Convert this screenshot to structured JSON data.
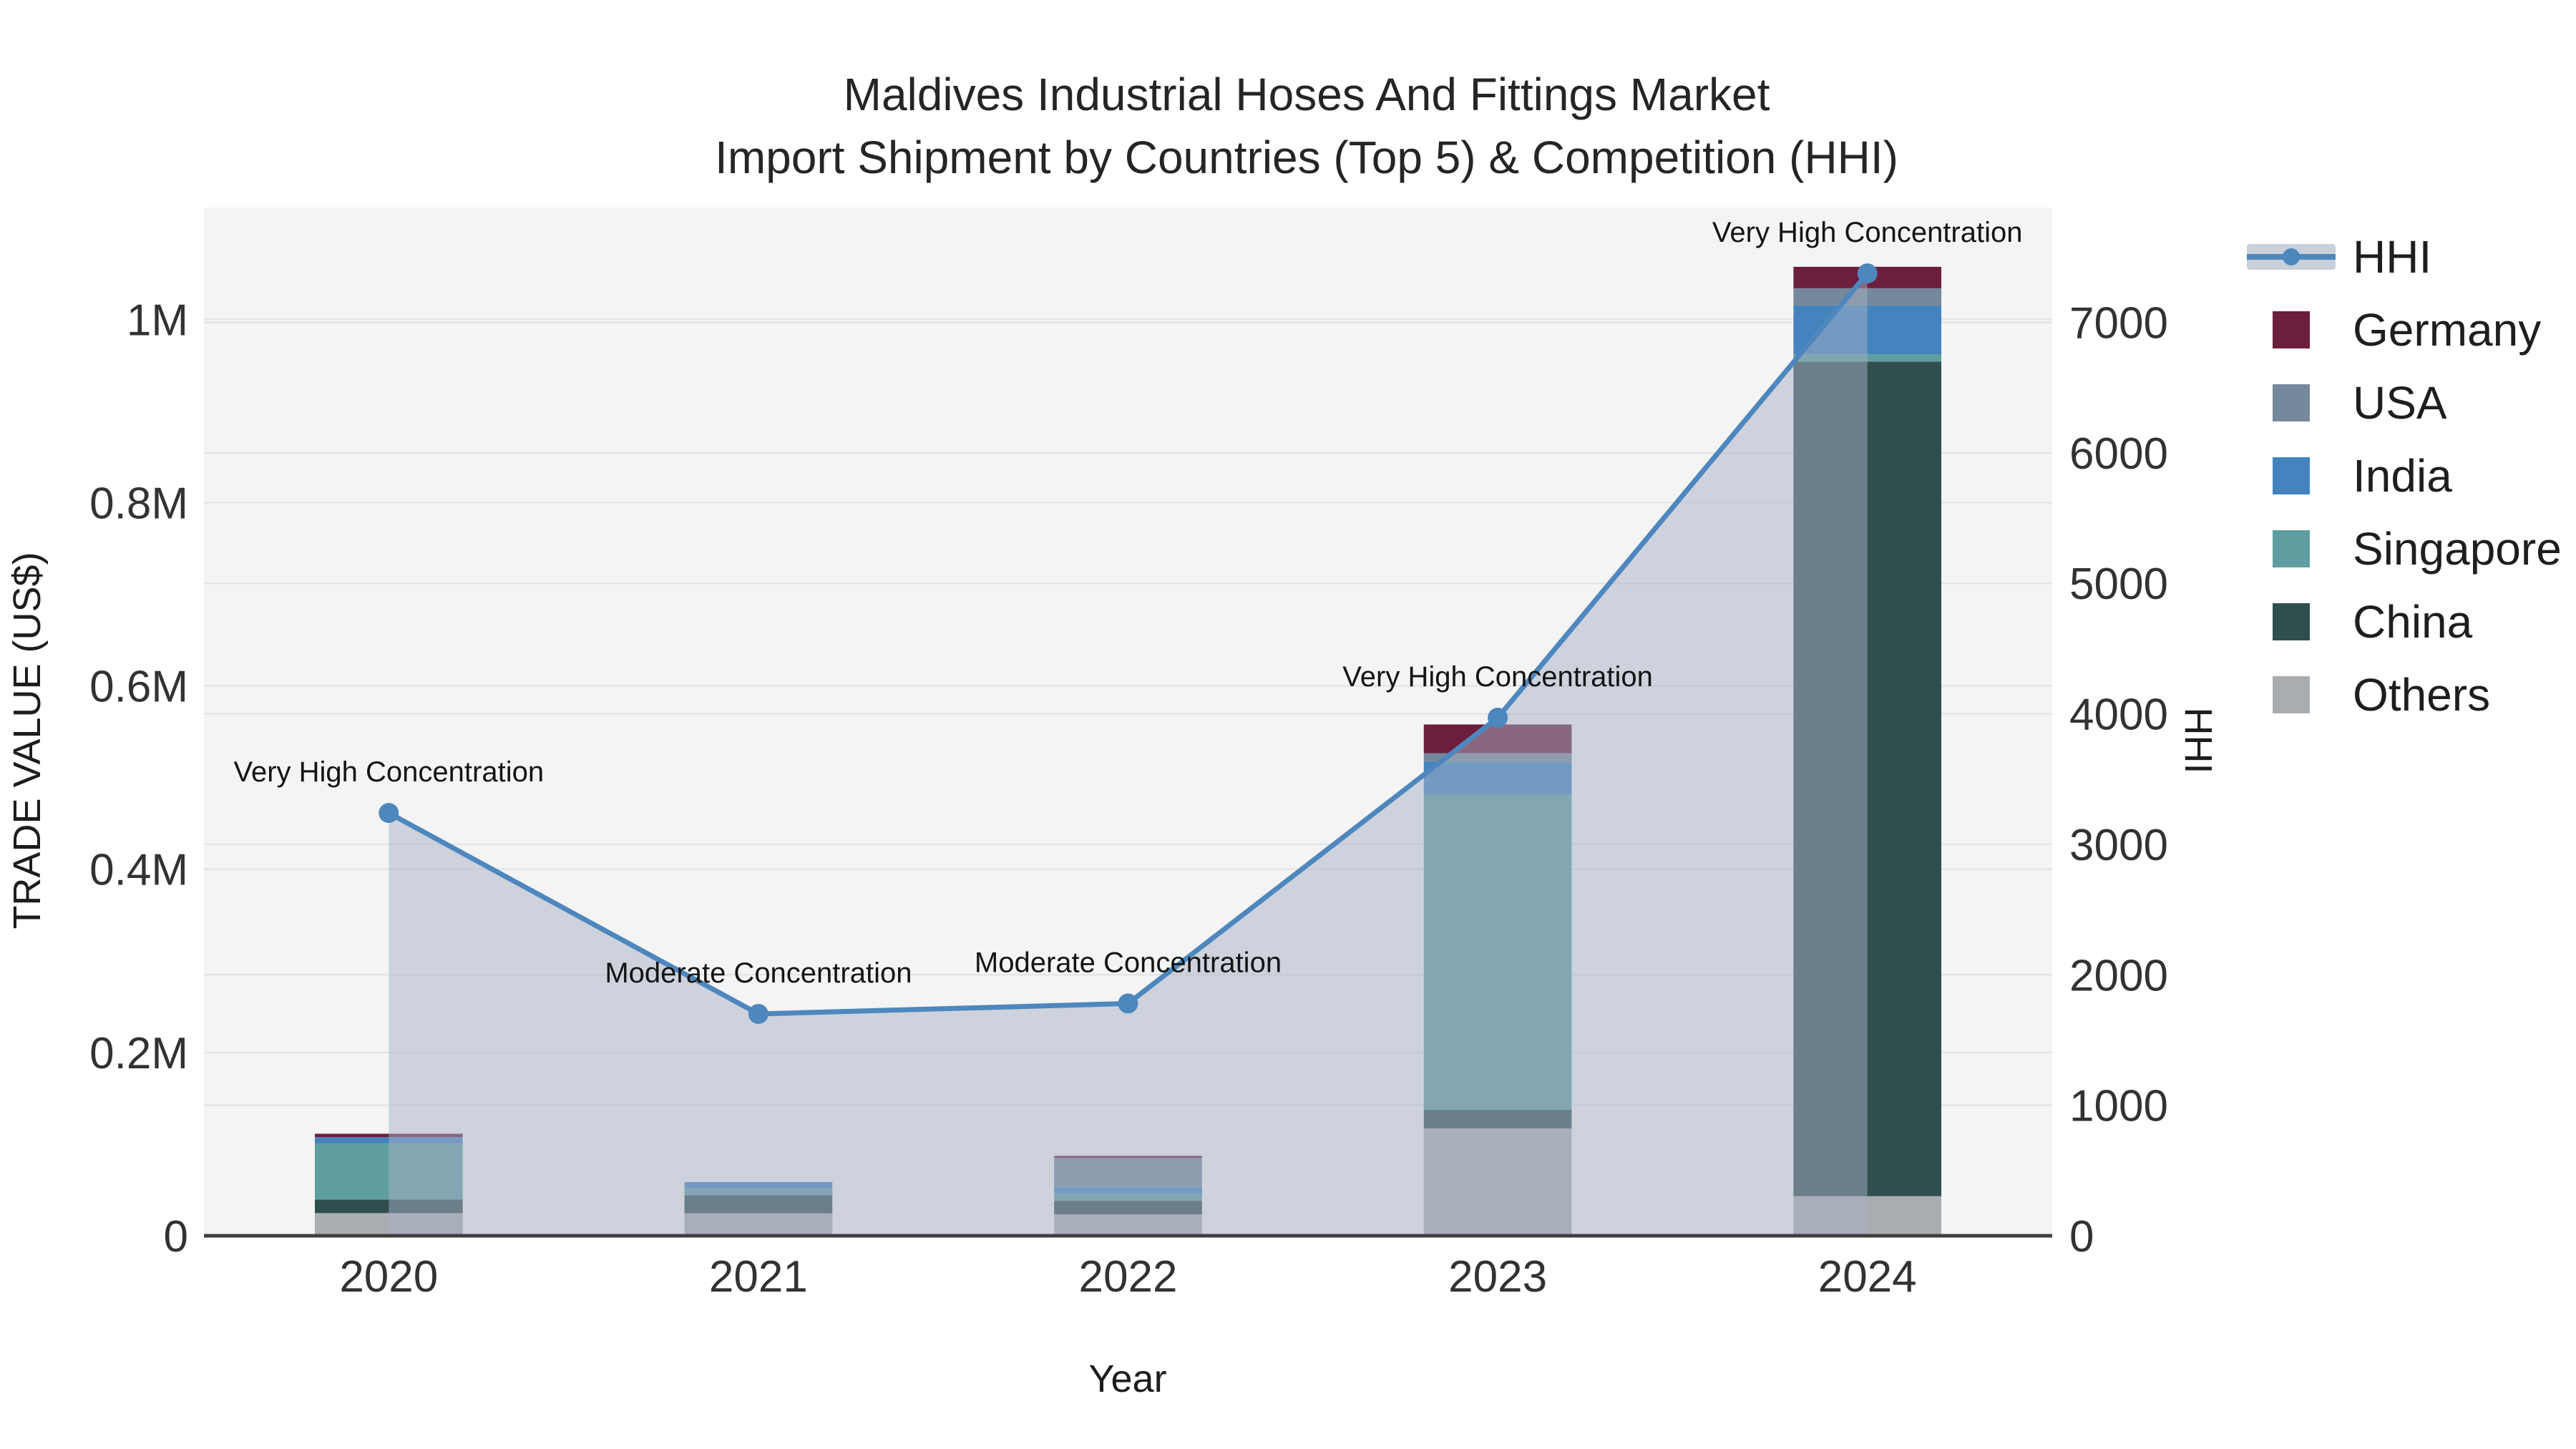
{
  "title": {
    "line1": "Maldives Industrial Hoses And Fittings Market",
    "line2": "Import Shipment by Countries (Top 5) & Competition (HHI)"
  },
  "axes": {
    "x": {
      "title": "Year",
      "ticks": [
        "2020",
        "2021",
        "2022",
        "2023",
        "2024"
      ]
    },
    "y": {
      "title": "TRADE VALUE (US$)",
      "ticks": [
        {
          "label": "0",
          "value": 0
        },
        {
          "label": "0.2M",
          "value": 200000
        },
        {
          "label": "0.4M",
          "value": 400000
        },
        {
          "label": "0.6M",
          "value": 600000
        },
        {
          "label": "0.8M",
          "value": 800000
        },
        {
          "label": "1M",
          "value": 1000000
        }
      ]
    },
    "y2": {
      "title": "HHI",
      "ticks": [
        {
          "label": "0",
          "value": 0
        },
        {
          "label": "1000",
          "value": 1000
        },
        {
          "label": "2000",
          "value": 2000
        },
        {
          "label": "3000",
          "value": 3000
        },
        {
          "label": "4000",
          "value": 4000
        },
        {
          "label": "5000",
          "value": 5000
        },
        {
          "label": "6000",
          "value": 6000
        },
        {
          "label": "7000",
          "value": 7000
        }
      ]
    }
  },
  "legend": {
    "items": [
      {
        "name": "HHI",
        "type": "line",
        "color": "#4d87be"
      },
      {
        "name": "Germany",
        "type": "swatch",
        "color": "#6c1f3d"
      },
      {
        "name": "USA",
        "type": "swatch",
        "color": "#76889b"
      },
      {
        "name": "India",
        "type": "swatch",
        "color": "#4484be"
      },
      {
        "name": "Singapore",
        "type": "swatch",
        "color": "#5f9ea0"
      },
      {
        "name": "China",
        "type": "swatch",
        "color": "#2f4f4f"
      },
      {
        "name": "Others",
        "type": "swatch",
        "color": "#aaadb0"
      }
    ]
  },
  "chart_data": {
    "type": "combo: stacked bar (left axis) + line with area fill (right axis)",
    "categories": [
      "2020",
      "2021",
      "2022",
      "2023",
      "2024"
    ],
    "value_unit": "US$",
    "ylim": [
      0,
      1122000
    ],
    "y2lim": [
      0,
      7880
    ],
    "grid": true,
    "legend_position": "right",
    "bar_series_bottom_to_top": [
      {
        "name": "Others",
        "color": "#aaadb0",
        "values": [
          24700,
          24500,
          23400,
          117200,
          43200
        ]
      },
      {
        "name": "China",
        "color": "#2f4f4f",
        "values": [
          14900,
          19800,
          14800,
          20300,
          910700
        ]
      },
      {
        "name": "Singapore",
        "color": "#5f9ea0",
        "values": [
          61200,
          7000,
          7800,
          343800,
          7800
        ]
      },
      {
        "name": "India",
        "color": "#4484be",
        "values": [
          6800,
          7300,
          7300,
          36200,
          53400
        ]
      },
      {
        "name": "USA",
        "color": "#76889b",
        "values": [
          0,
          0,
          31800,
          9100,
          18800
        ]
      },
      {
        "name": "Germany",
        "color": "#6c1f3d",
        "values": [
          3700,
          0,
          2100,
          31300,
          23400
        ]
      }
    ],
    "line_series": {
      "name": "HHI",
      "axis": "y2",
      "color": "#4d87be",
      "fill_color": "rgba(166,176,196,0.5)",
      "values": [
        3240,
        1700,
        1780,
        3970,
        7375
      ]
    },
    "annotations": [
      {
        "x": "2020",
        "text": "Very High Concentration"
      },
      {
        "x": "2021",
        "text": "Moderate Concentration"
      },
      {
        "x": "2022",
        "text": "Moderate Concentration"
      },
      {
        "x": "2023",
        "text": "Very High Concentration"
      },
      {
        "x": "2024",
        "text": "Very High Concentration"
      }
    ]
  }
}
